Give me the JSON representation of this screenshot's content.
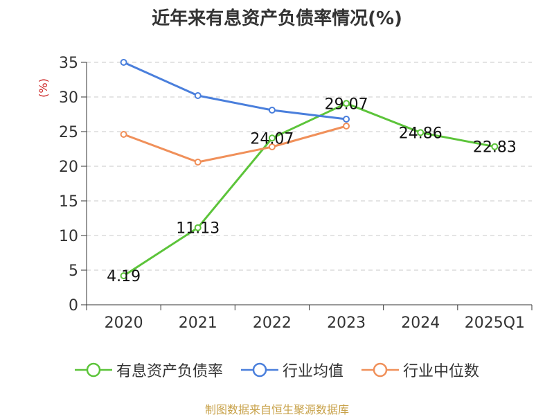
{
  "chart_data": {
    "type": "line",
    "title": "近年来有息资产负债率情况(%)",
    "ylabel": "(%)",
    "categories": [
      "2020",
      "2021",
      "2022",
      "2023",
      "2024",
      "2025Q1"
    ],
    "ylim": [
      0,
      35
    ],
    "yticks": [
      0,
      5,
      10,
      15,
      20,
      25,
      30,
      35
    ],
    "grid": true,
    "legend_position": "bottom",
    "series": [
      {
        "name": "有息资产负债率",
        "color": "#5cc43a",
        "values": [
          4.19,
          11.13,
          24.07,
          29.07,
          24.86,
          22.83
        ],
        "labels": [
          "4.19",
          "11.13",
          "24.07",
          "29.07",
          "24.86",
          "22.83"
        ]
      },
      {
        "name": "行业均值",
        "color": "#4a7fdc",
        "values": [
          35.0,
          30.2,
          28.1,
          26.8,
          null,
          null
        ]
      },
      {
        "name": "行业中位数",
        "color": "#f0905a",
        "values": [
          24.6,
          20.6,
          22.8,
          25.8,
          null,
          null
        ]
      }
    ]
  },
  "source_text": "制图数据来自恒生聚源数据库"
}
